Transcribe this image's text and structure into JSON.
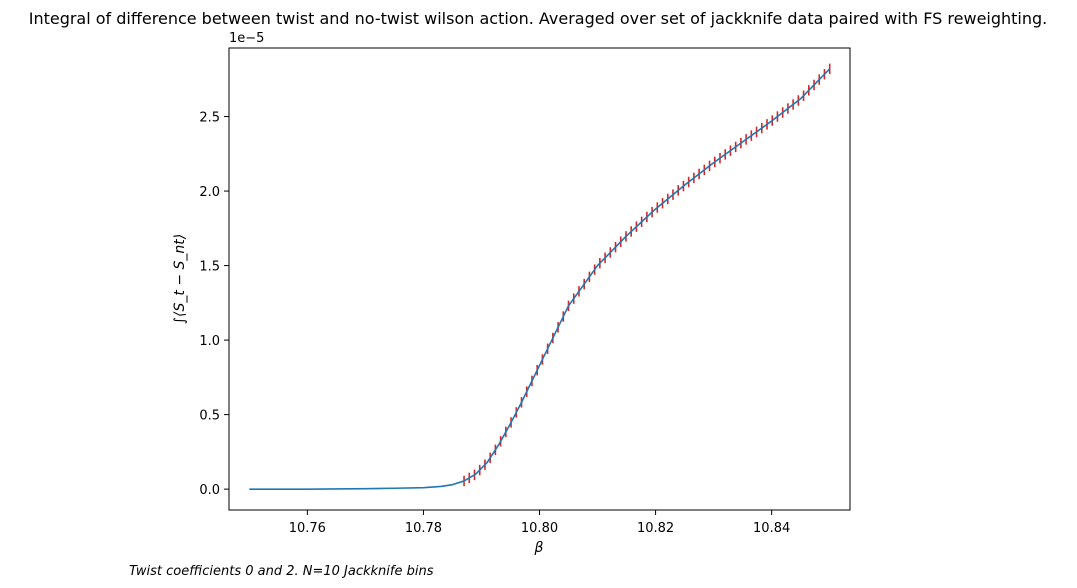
{
  "chart_data": {
    "type": "line",
    "title": "Integral of difference between twist and no-twist wilson action. Averaged over set of jackknife data paired with FS reweighting.",
    "xlabel": "β",
    "ylabel": "∫⟨S_t − S_nt⟩",
    "y_scale_label": "1e−5",
    "footnote": "Twist coefficients 0 and 2. N=10 Jackknife bins",
    "xlim": [
      10.7465,
      10.8535
    ],
    "ylim": [
      -0.14,
      2.96
    ],
    "x_ticks": [
      10.76,
      10.78,
      10.8,
      10.82,
      10.84
    ],
    "x_tick_labels": [
      "10.76",
      "10.78",
      "10.80",
      "10.82",
      "10.84"
    ],
    "y_ticks": [
      0.0,
      0.5,
      1.0,
      1.5,
      2.0,
      2.5
    ],
    "y_tick_labels": [
      "0.0",
      "0.5",
      "1.0",
      "1.5",
      "2.0",
      "2.5"
    ],
    "series": [
      {
        "line_color": "#1f77b4",
        "errorbar_color": "#d62728",
        "x": [
          10.75,
          10.76,
          10.77,
          10.775,
          10.78,
          10.783,
          10.785,
          10.787,
          10.789,
          10.791,
          10.793,
          10.795,
          10.797,
          10.8,
          10.805,
          10.81,
          10.815,
          10.82,
          10.825,
          10.83,
          10.835,
          10.84,
          10.845,
          10.85
        ],
        "y": [
          0.0,
          0.0,
          0.003,
          0.006,
          0.01,
          0.018,
          0.03,
          0.055,
          0.1,
          0.18,
          0.3,
          0.44,
          0.59,
          0.83,
          1.23,
          1.5,
          1.7,
          1.88,
          2.04,
          2.19,
          2.33,
          2.47,
          2.62,
          2.82
        ],
        "errorbar_x_start": 10.787,
        "errorbar_spacing": 0.0009,
        "yerr": 0.035
      }
    ]
  }
}
